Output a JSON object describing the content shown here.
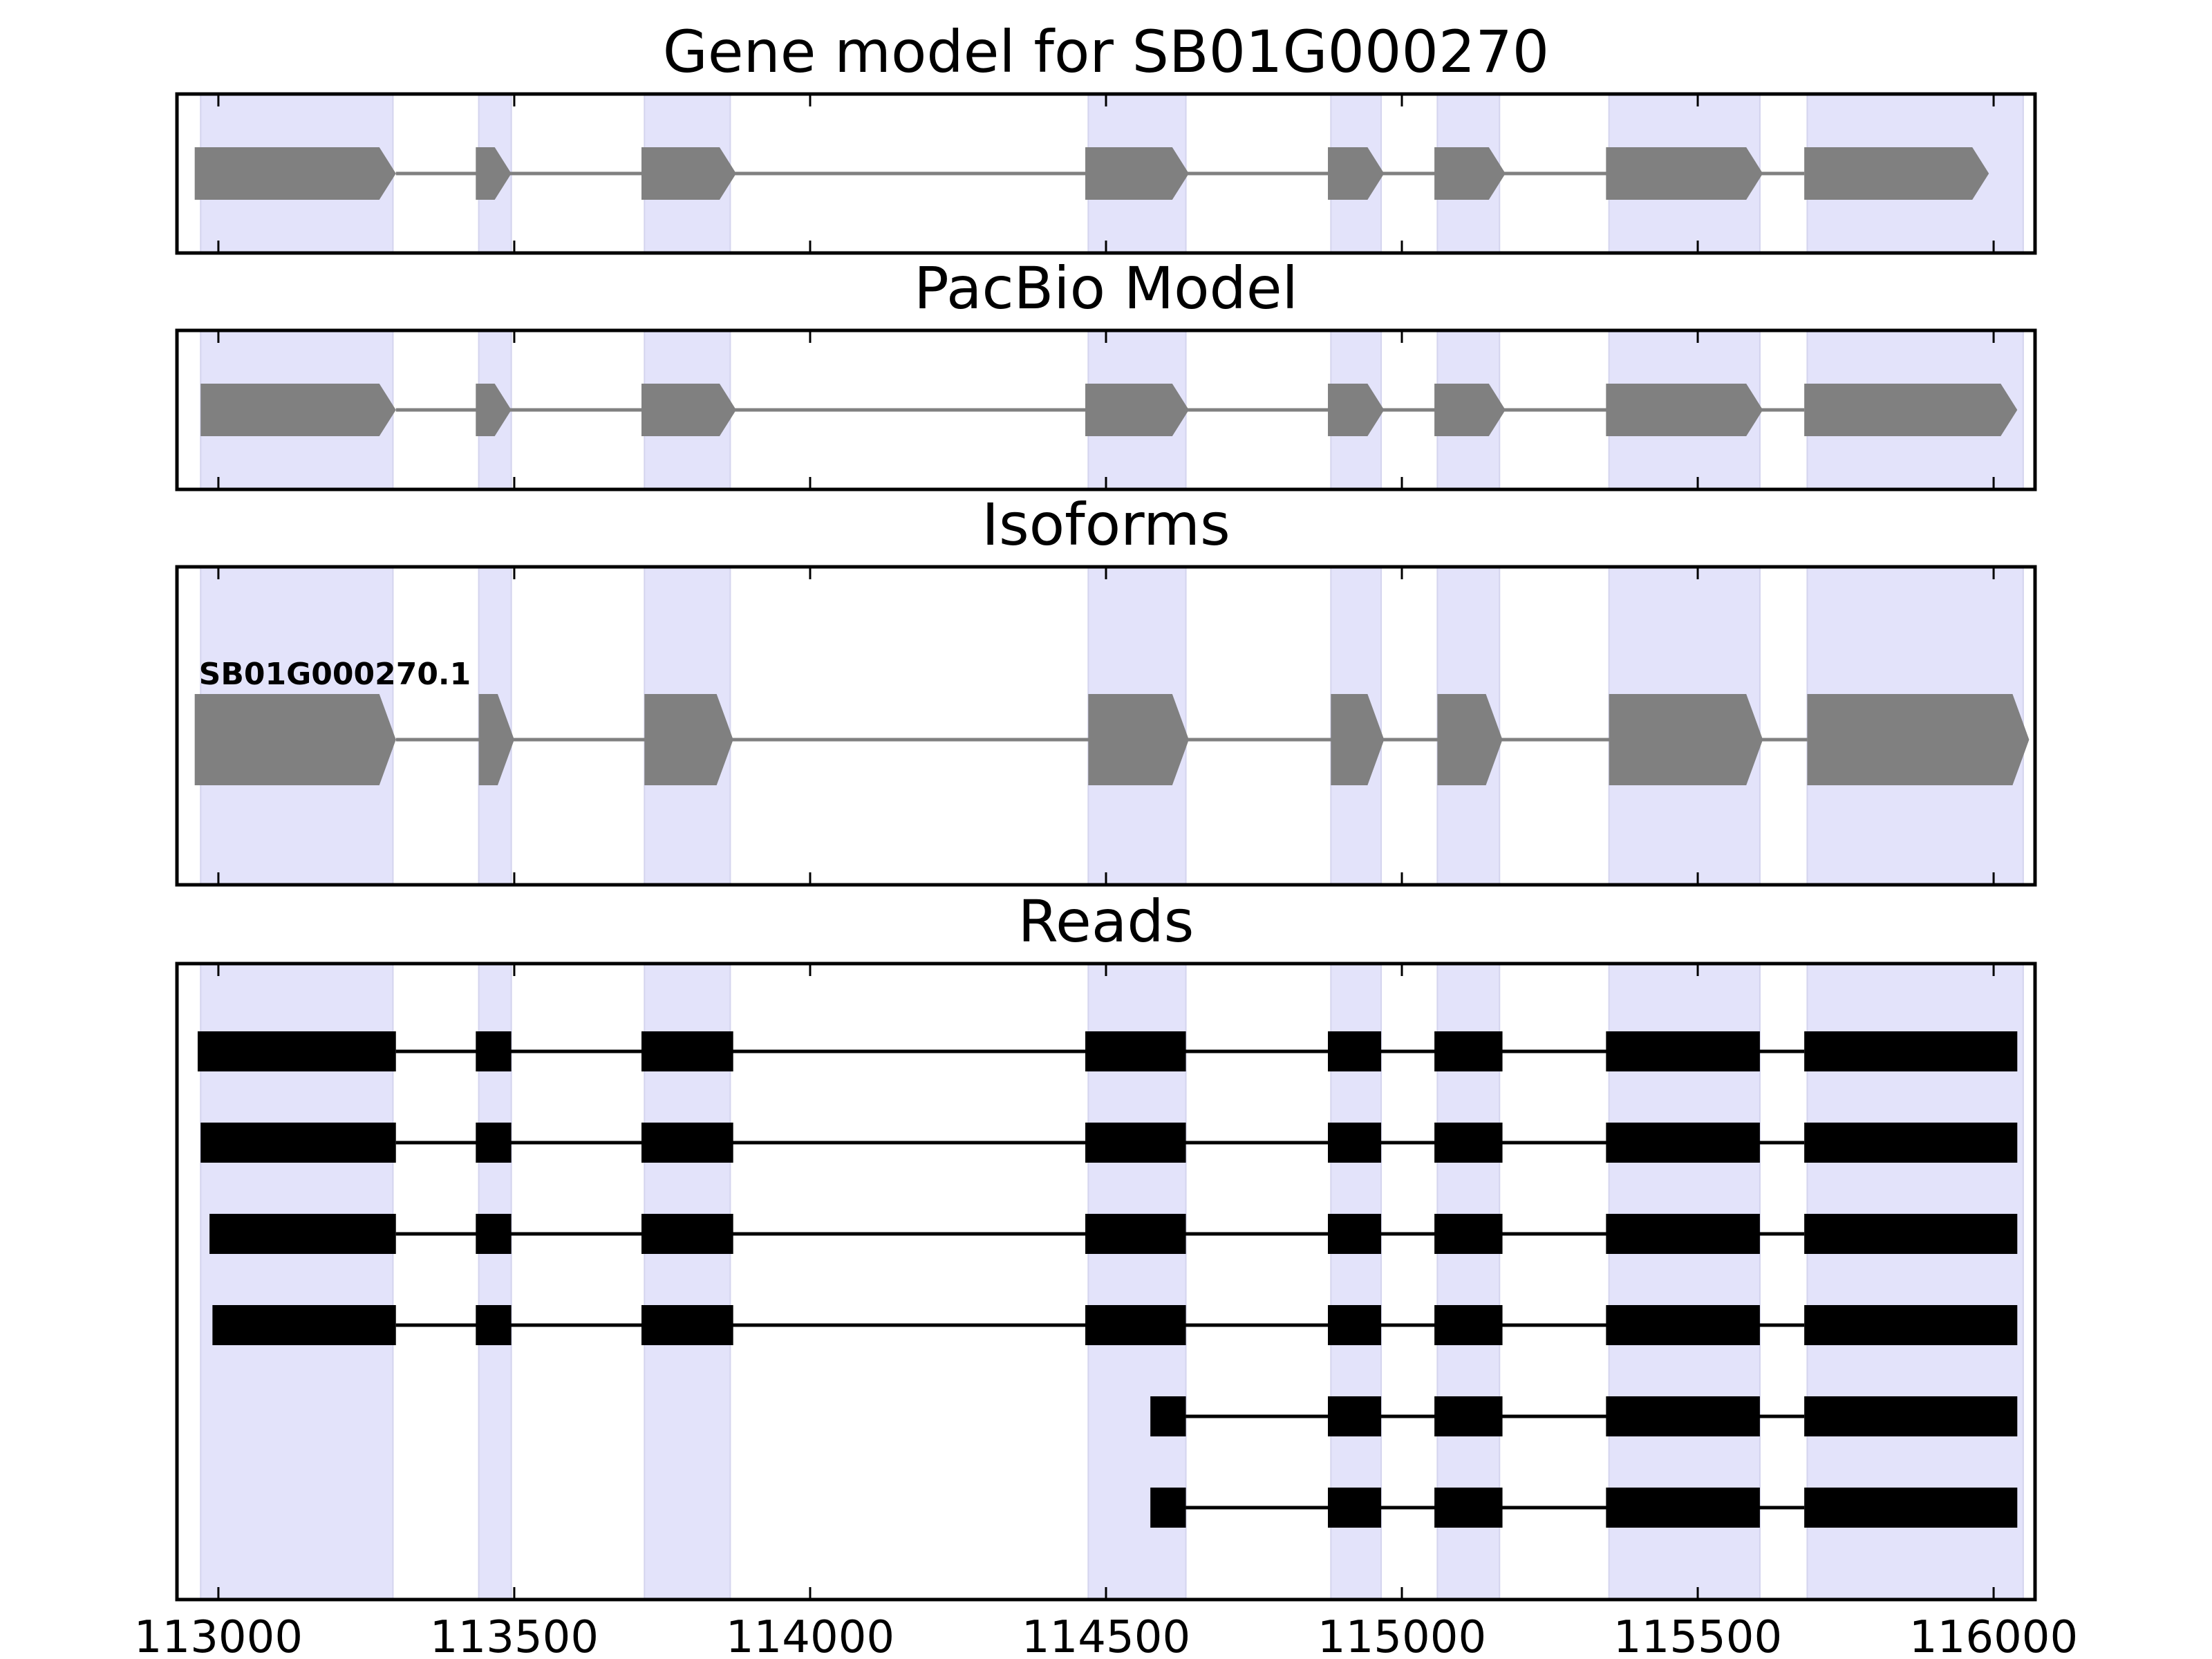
{
  "chart_data": {
    "type": "gene-structure",
    "xlim": [
      112930,
      116070
    ],
    "xticks": [
      113000,
      113500,
      114000,
      114500,
      115000,
      115500,
      116000
    ],
    "shade_color": "#e3e3fa",
    "feature_color": "#808080",
    "read_color": "#000000",
    "exon_regions": [
      [
        112970,
        113295
      ],
      [
        113440,
        113495
      ],
      [
        113720,
        113865
      ],
      [
        114470,
        114635
      ],
      [
        114880,
        114965
      ],
      [
        115060,
        115165
      ],
      [
        115350,
        115605
      ],
      [
        115685,
        116050
      ]
    ],
    "panels": [
      {
        "title": "Gene model for SB01G000270",
        "kind": "model",
        "exons": [
          [
            112960,
            113300
          ],
          [
            113435,
            113495
          ],
          [
            113715,
            113875
          ],
          [
            114465,
            114640
          ],
          [
            114875,
            114970
          ],
          [
            115055,
            115175
          ],
          [
            115345,
            115610
          ],
          [
            115680,
            115992
          ]
        ]
      },
      {
        "title": "PacBio Model",
        "kind": "model",
        "exons": [
          [
            112970,
            113300
          ],
          [
            113435,
            113495
          ],
          [
            113715,
            113875
          ],
          [
            114465,
            114640
          ],
          [
            114875,
            114970
          ],
          [
            115055,
            115175
          ],
          [
            115345,
            115610
          ],
          [
            115680,
            116040
          ]
        ]
      },
      {
        "title": "Isoforms",
        "kind": "isoform",
        "isoforms": [
          {
            "label": "SB01G000270.1",
            "exons": [
              [
                112960,
                113300
              ],
              [
                113440,
                113500
              ],
              [
                113720,
                113870
              ],
              [
                114470,
                114640
              ],
              [
                114880,
                114970
              ],
              [
                115060,
                115170
              ],
              [
                115350,
                115610
              ],
              [
                115685,
                116060
              ]
            ]
          }
        ]
      },
      {
        "title": "Reads",
        "kind": "reads",
        "reads": [
          [
            [
              112965,
              113300
            ],
            [
              113435,
              113495
            ],
            [
              113715,
              113870
            ],
            [
              114465,
              114635
            ],
            [
              114875,
              114965
            ],
            [
              115055,
              115170
            ],
            [
              115345,
              115605
            ],
            [
              115680,
              116040
            ]
          ],
          [
            [
              112970,
              113300
            ],
            [
              113435,
              113495
            ],
            [
              113715,
              113870
            ],
            [
              114465,
              114635
            ],
            [
              114875,
              114965
            ],
            [
              115055,
              115170
            ],
            [
              115345,
              115605
            ],
            [
              115680,
              116040
            ]
          ],
          [
            [
              112985,
              113300
            ],
            [
              113435,
              113495
            ],
            [
              113715,
              113870
            ],
            [
              114465,
              114635
            ],
            [
              114875,
              114965
            ],
            [
              115055,
              115170
            ],
            [
              115345,
              115605
            ],
            [
              115680,
              116040
            ]
          ],
          [
            [
              112990,
              113300
            ],
            [
              113435,
              113495
            ],
            [
              113715,
              113870
            ],
            [
              114465,
              114635
            ],
            [
              114875,
              114965
            ],
            [
              115055,
              115170
            ],
            [
              115345,
              115605
            ],
            [
              115680,
              116040
            ]
          ],
          [
            [
              114575,
              114635
            ],
            [
              114875,
              114965
            ],
            [
              115055,
              115170
            ],
            [
              115345,
              115605
            ],
            [
              115680,
              116040
            ]
          ],
          [
            [
              114575,
              114635
            ],
            [
              114875,
              114965
            ],
            [
              115055,
              115170
            ],
            [
              115345,
              115605
            ],
            [
              115680,
              116040
            ]
          ]
        ]
      }
    ]
  }
}
